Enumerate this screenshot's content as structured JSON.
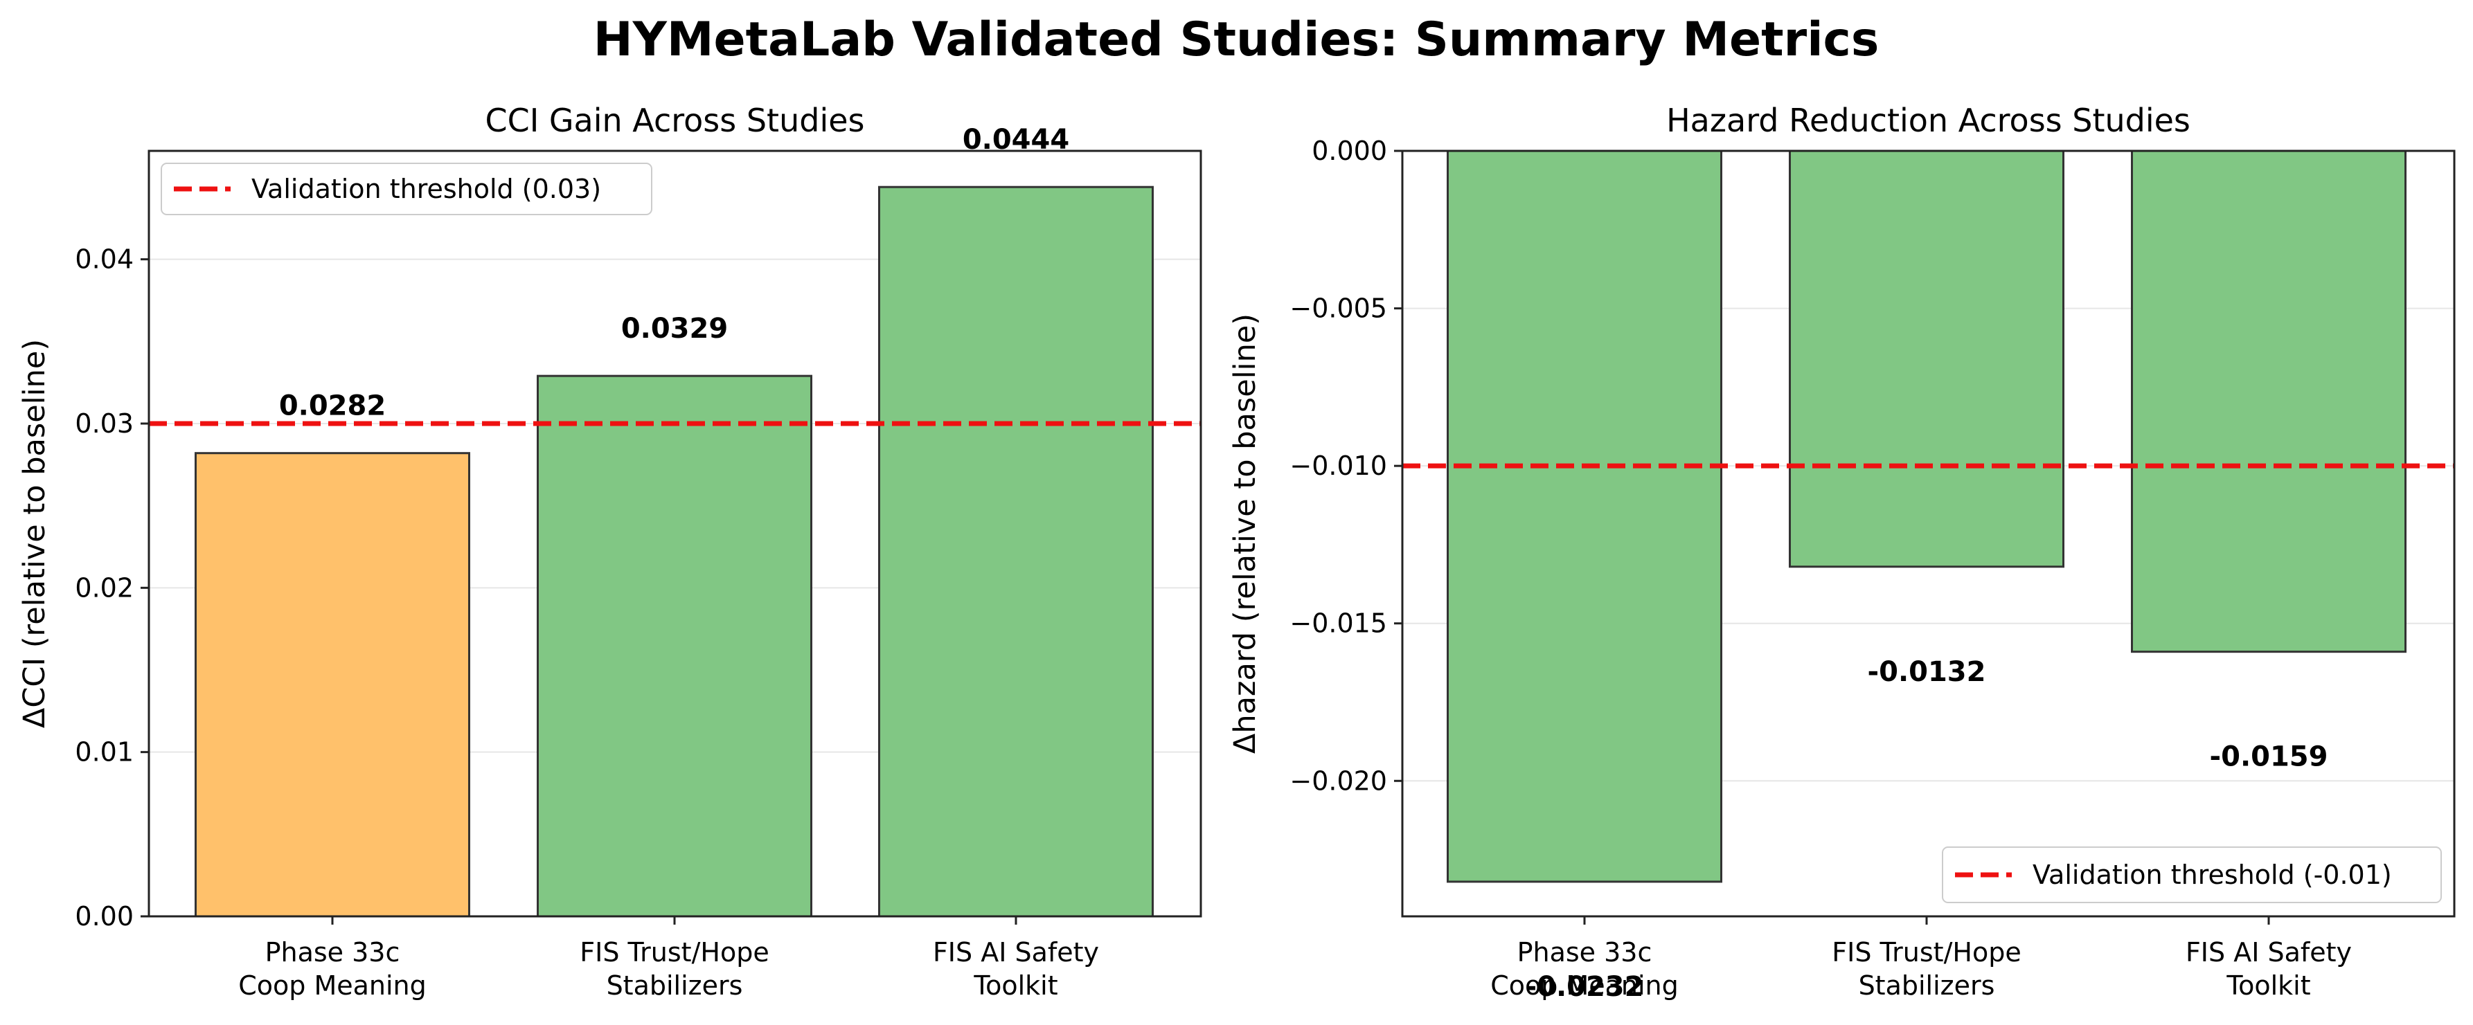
{
  "figure_title": "HYMetaLab Validated Studies: Summary Metrics",
  "colors": {
    "validated_bar": "#81c784",
    "below_threshold_bar": "#ffc16b",
    "bar_edge": "#333333",
    "threshold_line": "#ee1111",
    "grid": "#e6e6e6"
  },
  "chart_data": [
    {
      "type": "bar",
      "title": "CCI Gain Across Studies",
      "xlabel": "",
      "ylabel": "ΔCCI (relative to baseline)",
      "categories": [
        [
          "Phase 33c",
          "Coop Meaning"
        ],
        [
          "FIS Trust/Hope",
          "Stabilizers"
        ],
        [
          "FIS AI Safety",
          "Toolkit"
        ]
      ],
      "values": [
        0.0282,
        0.0329,
        0.0444
      ],
      "value_labels": [
        "0.0282",
        "0.0329",
        "0.0444"
      ],
      "bar_colors": [
        "below_threshold_bar",
        "validated_bar",
        "validated_bar"
      ],
      "ylim": [
        0,
        0.0466
      ],
      "yticks": [
        0.0,
        0.01,
        0.02,
        0.03,
        0.04
      ],
      "ytick_labels": [
        "0.00",
        "0.01",
        "0.02",
        "0.03",
        "0.04"
      ],
      "threshold": 0.03,
      "threshold_label": "Validation threshold (0.03)",
      "legend_position": "upper-left",
      "grid": "y"
    },
    {
      "type": "bar",
      "title": "Hazard Reduction Across Studies",
      "xlabel": "",
      "ylabel": "Δhazard (relative to baseline)",
      "categories": [
        [
          "Phase 33c",
          "Coop Meaning"
        ],
        [
          "FIS Trust/Hope",
          "Stabilizers"
        ],
        [
          "FIS AI Safety",
          "Toolkit"
        ]
      ],
      "values": [
        -0.0232,
        -0.0132,
        -0.0159
      ],
      "value_labels": [
        "-0.0232",
        "-0.0132",
        "-0.0159"
      ],
      "bar_colors": [
        "validated_bar",
        "validated_bar",
        "validated_bar"
      ],
      "ylim": [
        -0.0243,
        0.0
      ],
      "yticks": [
        0.0,
        -0.005,
        -0.01,
        -0.015,
        -0.02
      ],
      "ytick_labels": [
        "0.000",
        "−0.005",
        "−0.010",
        "−0.015",
        "−0.020"
      ],
      "threshold": -0.01,
      "threshold_label": "Validation threshold (-0.01)",
      "legend_position": "lower-right",
      "grid": "y"
    }
  ]
}
